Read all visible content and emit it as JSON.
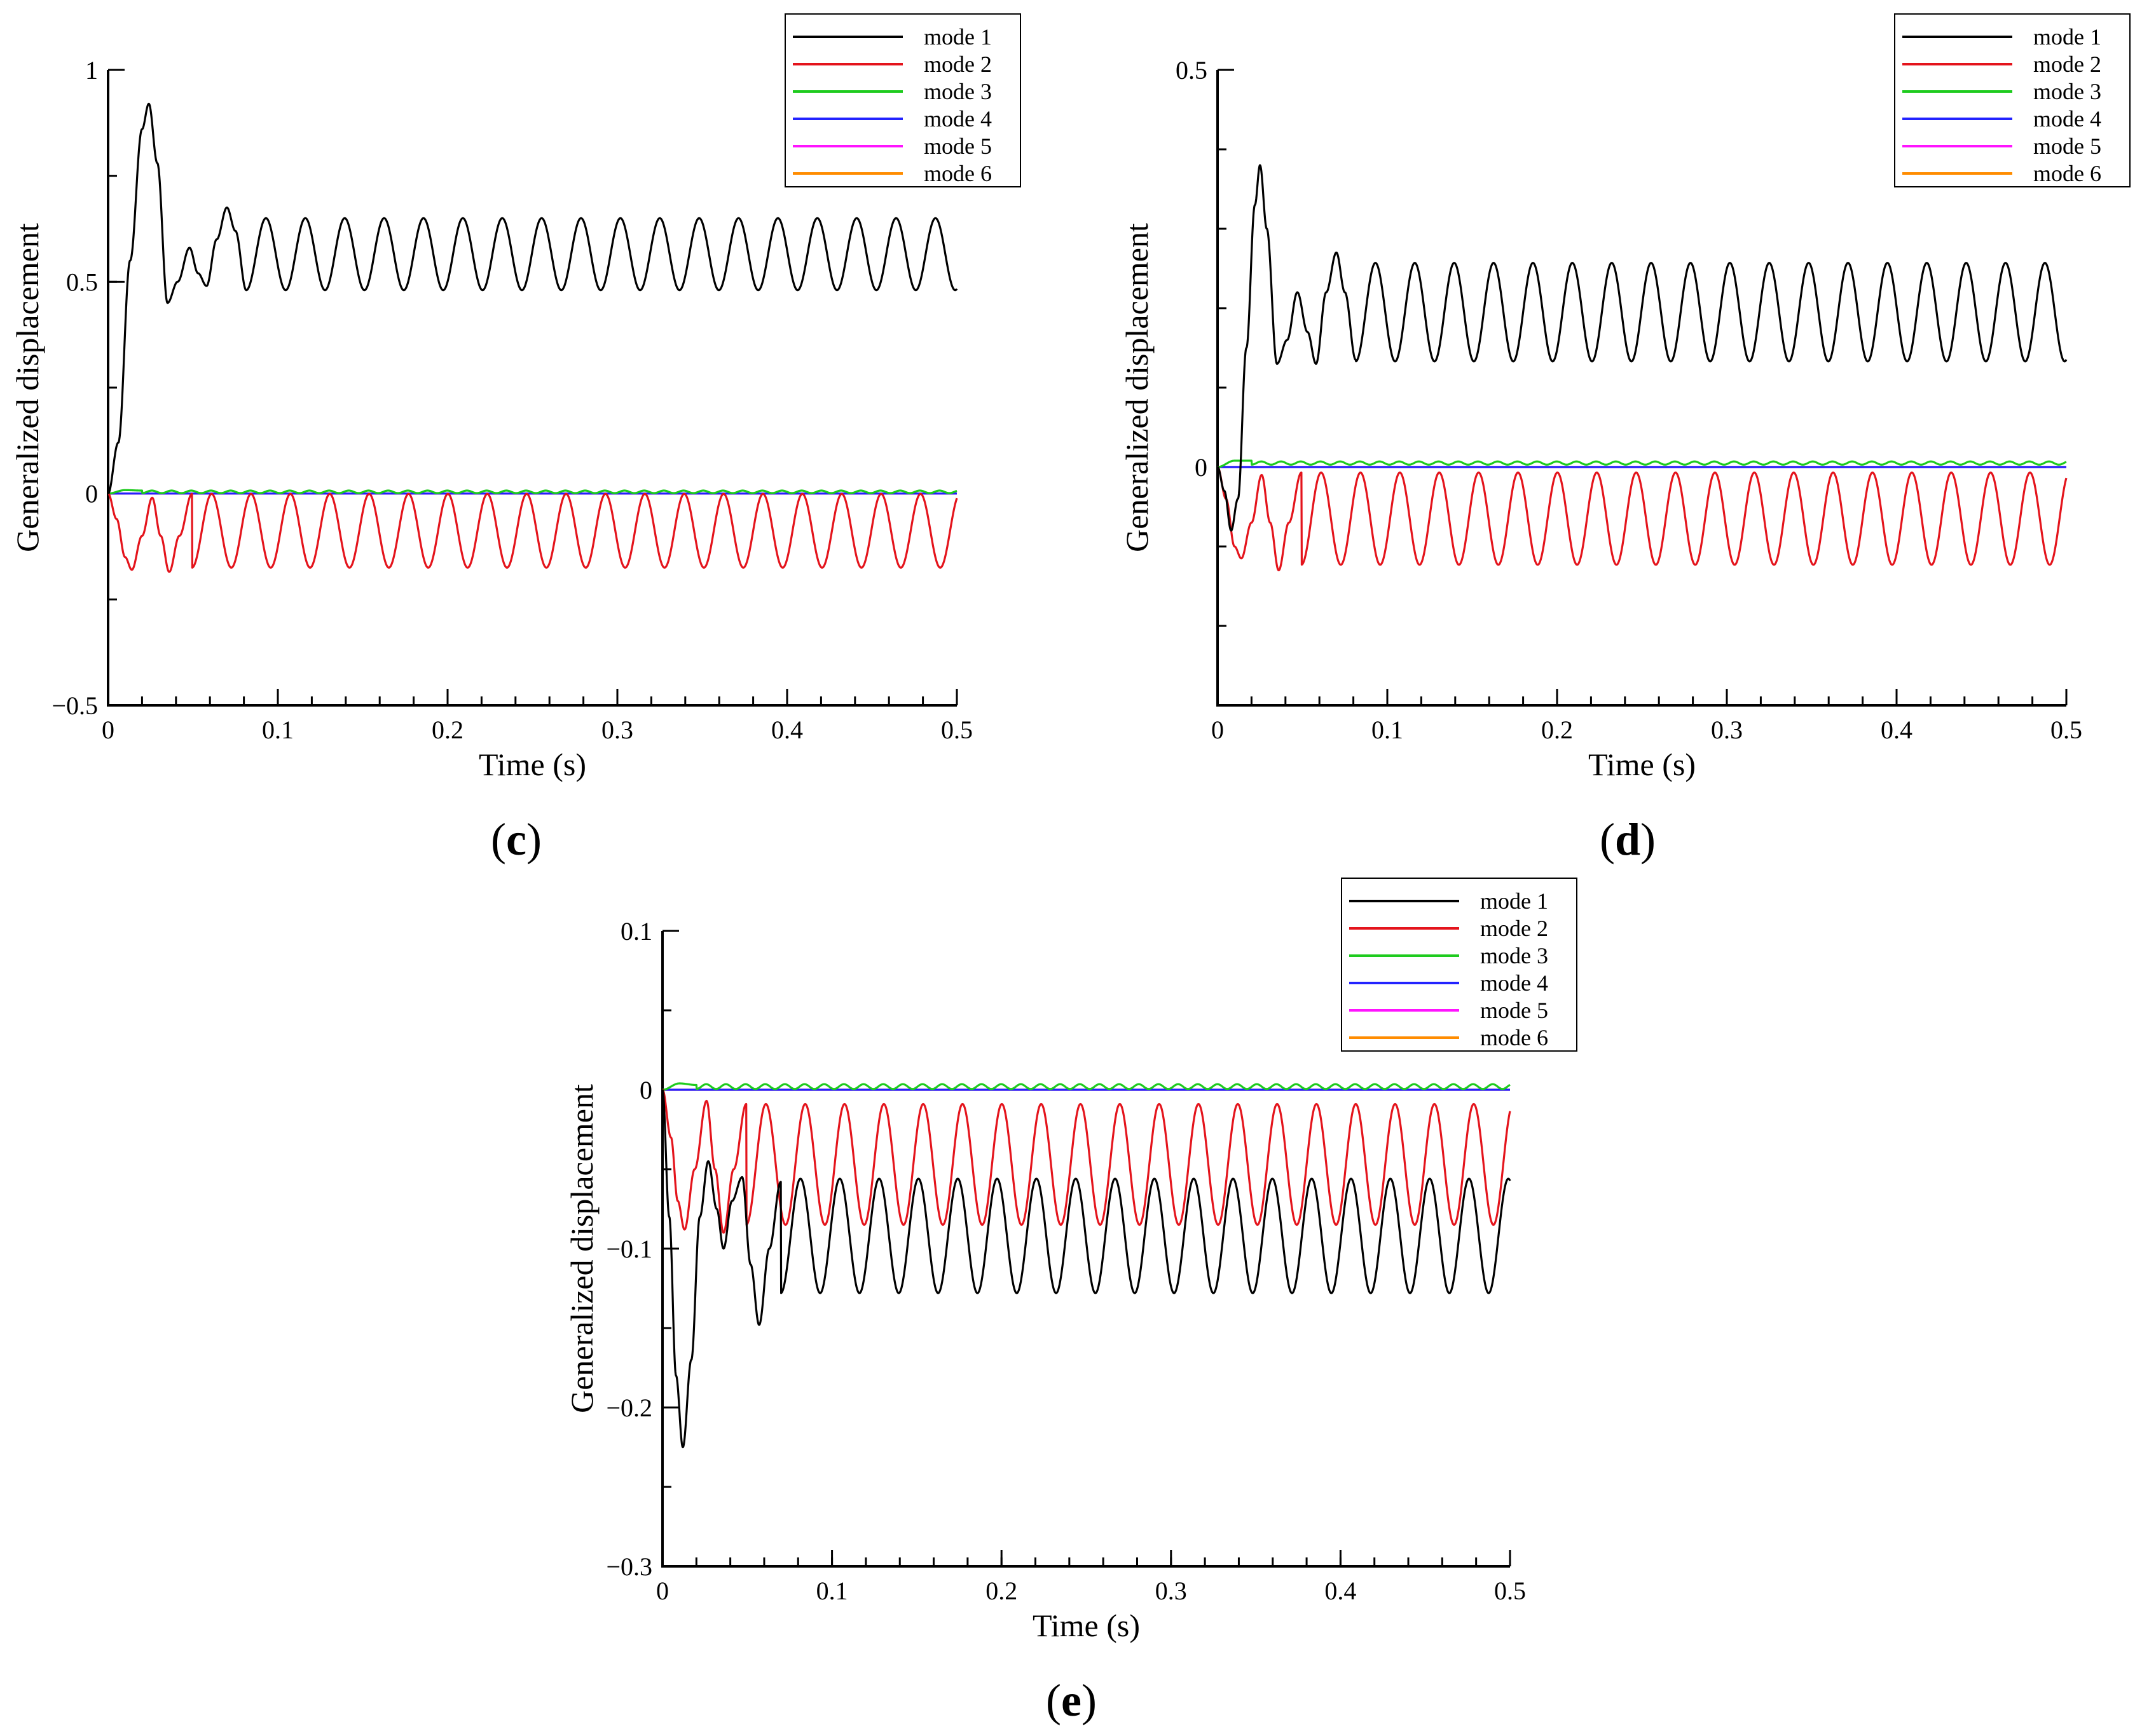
{
  "figure": {
    "colors": {
      "mode1": "#000000",
      "mode2": "#e4141c",
      "mode3": "#1ecb1e",
      "mode4": "#2323ff",
      "mode5": "#ff14ff",
      "mode6": "#ff8c00"
    }
  },
  "chart_data": [
    {
      "id": "c",
      "type": "line",
      "panel_label": "c",
      "xlabel": "Time (s)",
      "ylabel": "Generalized displacement",
      "xlim": [
        0,
        0.5
      ],
      "ylim": [
        -0.5,
        1
      ],
      "xticks": [
        0,
        0.1,
        0.2,
        0.3,
        0.4,
        0.5
      ],
      "xtick_labels": [
        "0",
        "0.1",
        "0.2",
        "0.3",
        "0.4",
        "0.5"
      ],
      "yticks": [
        -0.5,
        0,
        0.5,
        1
      ],
      "ytick_labels": [
        "−0.5",
        "0",
        "0.5",
        "1"
      ],
      "legend_position": "top-right",
      "legend": [
        "mode 1",
        "mode 2",
        "mode 3",
        "mode 4",
        "mode 5",
        "mode 6"
      ],
      "series": [
        {
          "name": "mode 1",
          "color": "#000000",
          "mean": 0.565,
          "amp": 0.085,
          "period": 0.0232,
          "phase": 0.0582,
          "tail_len": 0.001,
          "transient": [
            [
              0,
              0
            ],
            [
              0.006,
              0.12
            ],
            [
              0.013,
              0.55
            ],
            [
              0.02,
              0.86
            ],
            [
              0.024,
              0.92
            ],
            [
              0.029,
              0.78
            ],
            [
              0.035,
              0.45
            ],
            [
              0.041,
              0.5
            ],
            [
              0.048,
              0.58
            ],
            [
              0.053,
              0.52
            ],
            [
              0.058,
              0.49
            ],
            [
              0.064,
              0.6
            ],
            [
              0.07,
              0.675
            ],
            [
              0.075,
              0.62
            ],
            [
              0.0814,
              0.48
            ]
          ]
        },
        {
          "name": "mode 2",
          "color": "#e4141c",
          "mean": -0.088,
          "amp": 0.087,
          "period": 0.0232,
          "phase": 0.0494,
          "tail_len": 0.001,
          "transient": [
            [
              0,
              0
            ],
            [
              0.005,
              -0.06
            ],
            [
              0.01,
              -0.15
            ],
            [
              0.014,
              -0.18
            ],
            [
              0.02,
              -0.1
            ],
            [
              0.026,
              -0.01
            ],
            [
              0.031,
              -0.1
            ],
            [
              0.036,
              -0.185
            ],
            [
              0.042,
              -0.1
            ],
            [
              0.0494,
              -0.001
            ]
          ]
        },
        {
          "name": "mode 3",
          "color": "#1ecb1e",
          "mean": 0.004,
          "amp": 0.003,
          "period": 0.0116,
          "phase": 0.02,
          "tail_len": 0.001,
          "transient": [
            [
              0,
              0
            ],
            [
              0.01,
              0.008
            ],
            [
              0.02,
              0.007
            ]
          ]
        },
        {
          "name": "mode 4",
          "color": "#2323ff",
          "mean": 0.0,
          "amp": 0.0,
          "period": 0.0232,
          "phase": 0,
          "tail_len": 0,
          "transient": []
        },
        {
          "name": "mode 5",
          "color": "#ff14ff",
          "mean": 0.0,
          "amp": 0.0,
          "period": 0.0232,
          "phase": 0,
          "tail_len": 0,
          "transient": []
        },
        {
          "name": "mode 6",
          "color": "#ff8c00",
          "mean": 0.0,
          "amp": 0.0,
          "period": 0.0232,
          "phase": 0,
          "tail_len": 0,
          "transient": []
        }
      ]
    },
    {
      "id": "d",
      "type": "line",
      "panel_label": "d",
      "xlabel": "Time (s)",
      "ylabel": "Generalized displacement",
      "xlim": [
        0,
        0.5
      ],
      "ylim": [
        -0.3,
        0.5
      ],
      "xticks": [
        0,
        0.1,
        0.2,
        0.3,
        0.4,
        0.5
      ],
      "xtick_labels": [
        "0",
        "0.1",
        "0.2",
        "0.3",
        "0.4",
        "0.5"
      ],
      "yticks": [
        0,
        0.5
      ],
      "ytick_labels": [
        "0",
        "0.5"
      ],
      "legend_position": "top-right",
      "legend": [
        "mode 1",
        "mode 2",
        "mode 3",
        "mode 4",
        "mode 5",
        "mode 6"
      ],
      "series": [
        {
          "name": "mode 1",
          "color": "#000000",
          "mean": 0.195,
          "amp": 0.062,
          "period": 0.0232,
          "phase": 0.0582,
          "tail_len": 0.001,
          "transient": [
            [
              0,
              0
            ],
            [
              0.004,
              -0.03
            ],
            [
              0.008,
              -0.08
            ],
            [
              0.012,
              -0.04
            ],
            [
              0.017,
              0.15
            ],
            [
              0.022,
              0.33
            ],
            [
              0.025,
              0.38
            ],
            [
              0.029,
              0.3
            ],
            [
              0.035,
              0.13
            ],
            [
              0.041,
              0.16
            ],
            [
              0.047,
              0.22
            ],
            [
              0.053,
              0.17
            ],
            [
              0.058,
              0.13
            ],
            [
              0.064,
              0.22
            ],
            [
              0.07,
              0.27
            ],
            [
              0.075,
              0.22
            ],
            [
              0.0814,
              0.135
            ]
          ]
        },
        {
          "name": "mode 2",
          "color": "#e4141c",
          "mean": -0.065,
          "amp": 0.058,
          "period": 0.0232,
          "phase": 0.0494,
          "tail_len": 0.001,
          "transient": [
            [
              0,
              0
            ],
            [
              0.005,
              -0.04
            ],
            [
              0.01,
              -0.1
            ],
            [
              0.014,
              -0.115
            ],
            [
              0.02,
              -0.07
            ],
            [
              0.026,
              -0.01
            ],
            [
              0.031,
              -0.07
            ],
            [
              0.036,
              -0.13
            ],
            [
              0.042,
              -0.07
            ],
            [
              0.0494,
              -0.007
            ]
          ]
        },
        {
          "name": "mode 3",
          "color": "#1ecb1e",
          "mean": 0.005,
          "amp": 0.002,
          "period": 0.0116,
          "phase": 0.02,
          "tail_len": 0.001,
          "transient": [
            [
              0,
              0
            ],
            [
              0.01,
              0.008
            ],
            [
              0.02,
              0.008
            ]
          ]
        },
        {
          "name": "mode 4",
          "color": "#2323ff",
          "mean": 0.0,
          "amp": 0.0,
          "period": 0.0232,
          "phase": 0,
          "tail_len": 0,
          "transient": []
        },
        {
          "name": "mode 5",
          "color": "#ff14ff",
          "mean": 0.0,
          "amp": 0.0,
          "period": 0.0232,
          "phase": 0,
          "tail_len": 0,
          "transient": []
        },
        {
          "name": "mode 6",
          "color": "#ff8c00",
          "mean": 0.0,
          "amp": 0.0,
          "period": 0.0232,
          "phase": 0,
          "tail_len": 0,
          "transient": []
        }
      ]
    },
    {
      "id": "e",
      "type": "line",
      "panel_label": "e",
      "xlabel": "Time (s)",
      "ylabel": "Generalized displacement",
      "xlim": [
        0,
        0.5
      ],
      "ylim": [
        -0.3,
        0.1
      ],
      "xticks": [
        0,
        0.1,
        0.2,
        0.3,
        0.4,
        0.5
      ],
      "xtick_labels": [
        "0",
        "0.1",
        "0.2",
        "0.3",
        "0.4",
        "0.5"
      ],
      "yticks": [
        -0.3,
        -0.2,
        -0.1,
        0,
        0.1
      ],
      "ytick_labels": [
        "−0.3",
        "−0.2",
        "−0.1",
        "0",
        "0.1"
      ],
      "legend_position": "top-right",
      "legend": [
        "mode 1",
        "mode 2",
        "mode 3",
        "mode 4",
        "mode 5",
        "mode 6"
      ],
      "series": [
        {
          "name": "mode 1",
          "color": "#000000",
          "mean": -0.092,
          "amp": 0.036,
          "period": 0.0232,
          "phase": 0.0698,
          "tail_len": 0.001,
          "transient": [
            [
              0,
              0
            ],
            [
              0.004,
              -0.08
            ],
            [
              0.008,
              -0.18
            ],
            [
              0.012,
              -0.225
            ],
            [
              0.017,
              -0.17
            ],
            [
              0.022,
              -0.08
            ],
            [
              0.027,
              -0.045
            ],
            [
              0.032,
              -0.075
            ],
            [
              0.036,
              -0.1
            ],
            [
              0.041,
              -0.07
            ],
            [
              0.047,
              -0.055
            ],
            [
              0.052,
              -0.11
            ],
            [
              0.057,
              -0.148
            ],
            [
              0.063,
              -0.1
            ],
            [
              0.0698,
              -0.058
            ]
          ]
        },
        {
          "name": "mode 2",
          "color": "#e4141c",
          "mean": -0.047,
          "amp": 0.038,
          "period": 0.0232,
          "phase": 0.0494,
          "tail_len": 0.001,
          "transient": [
            [
              0,
              0
            ],
            [
              0.005,
              -0.03
            ],
            [
              0.009,
              -0.07
            ],
            [
              0.013,
              -0.088
            ],
            [
              0.019,
              -0.05
            ],
            [
              0.026,
              -0.007
            ],
            [
              0.031,
              -0.05
            ],
            [
              0.036,
              -0.09
            ],
            [
              0.042,
              -0.05
            ],
            [
              0.0494,
              -0.009
            ]
          ]
        },
        {
          "name": "mode 3",
          "color": "#1ecb1e",
          "mean": 0.002,
          "amp": 0.0015,
          "period": 0.0116,
          "phase": 0.02,
          "tail_len": 0.001,
          "transient": [
            [
              0,
              0
            ],
            [
              0.01,
              0.004
            ],
            [
              0.02,
              0.003
            ]
          ]
        },
        {
          "name": "mode 4",
          "color": "#2323ff",
          "mean": 0.0,
          "amp": 0.0,
          "period": 0.0232,
          "phase": 0,
          "tail_len": 0,
          "transient": []
        },
        {
          "name": "mode 5",
          "color": "#ff14ff",
          "mean": 0.0,
          "amp": 0.0,
          "period": 0.0232,
          "phase": 0,
          "tail_len": 0,
          "transient": []
        },
        {
          "name": "mode 6",
          "color": "#ff8c00",
          "mean": 0.0,
          "amp": 0.0,
          "period": 0.0232,
          "phase": 0,
          "tail_len": 0,
          "transient": []
        }
      ]
    }
  ]
}
